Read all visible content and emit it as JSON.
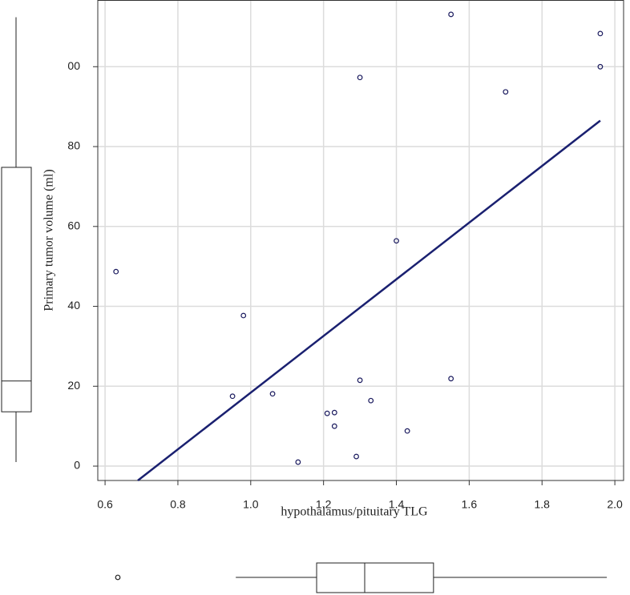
{
  "chart_data": {
    "type": "scatter",
    "x_label": "hypothalamus/pituitary  TLG",
    "y_label": "Primary  tumor  volume  (ml)",
    "x": [
      0.63,
      0.95,
      0.98,
      1.06,
      1.13,
      1.21,
      1.23,
      1.23,
      1.29,
      1.3,
      1.33,
      1.3,
      1.4,
      1.43,
      1.55,
      1.55,
      1.7,
      1.96,
      1.96
    ],
    "values": [
      48.7,
      17.5,
      37.7,
      18.1,
      1.0,
      13.2,
      13.4,
      10.0,
      2.4,
      21.5,
      16.4,
      97.3,
      56.4,
      8.8,
      21.9,
      113.1,
      93.7,
      108.3,
      100.0
    ],
    "point_color": "#1a1a5e",
    "regression_line": {
      "x": [
        0.69,
        1.96
      ],
      "values": [
        -3.6,
        86.5
      ],
      "color": "#1a2070"
    },
    "xlim": [
      0.58,
      2.024
    ],
    "ylim": [
      -3.6,
      116.7
    ],
    "xticks": [
      0.6,
      0.8,
      {
        "value": 1,
        "label": "1.0"
      },
      1.2,
      1.4,
      1.6,
      1.8,
      {
        "value": 2,
        "label": "2.0"
      }
    ],
    "yticks": [
      0,
      20,
      40,
      60,
      80,
      {
        "value": 100,
        "label": "00"
      }
    ],
    "grid": true,
    "y_box": {
      "whisker_low": 1.0,
      "q1": 13.6,
      "median": 21.3,
      "q3": 74.8,
      "whisker_high": 112.4
    },
    "x_box": {
      "whisker_low": 0.959,
      "q1": 1.181,
      "median": 1.313,
      "q3": 1.502,
      "whisker_high": 1.978,
      "outliers": [
        0.635
      ]
    }
  }
}
